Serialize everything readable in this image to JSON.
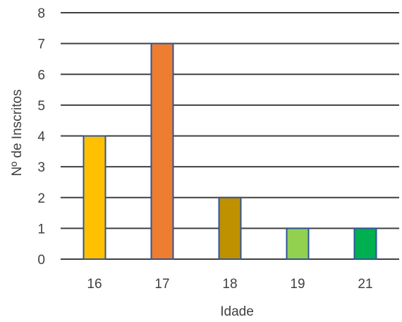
{
  "chart_data": {
    "type": "bar",
    "title": "",
    "xlabel": "Idade",
    "ylabel": "Nº de Inscritos",
    "categories": [
      "16",
      "17",
      "18",
      "19",
      "21"
    ],
    "values": [
      4,
      7,
      2,
      1,
      1
    ],
    "bar_colors": [
      "#FFC000",
      "#ED7D31",
      "#BF9000",
      "#92D050",
      "#00B050"
    ],
    "bar_border_color": "#2F5597",
    "gridline_color": "#404040",
    "ylim": [
      0,
      8
    ],
    "yticks": [
      0,
      1,
      2,
      3,
      4,
      5,
      6,
      7,
      8
    ],
    "grid": true,
    "legend": "none"
  }
}
